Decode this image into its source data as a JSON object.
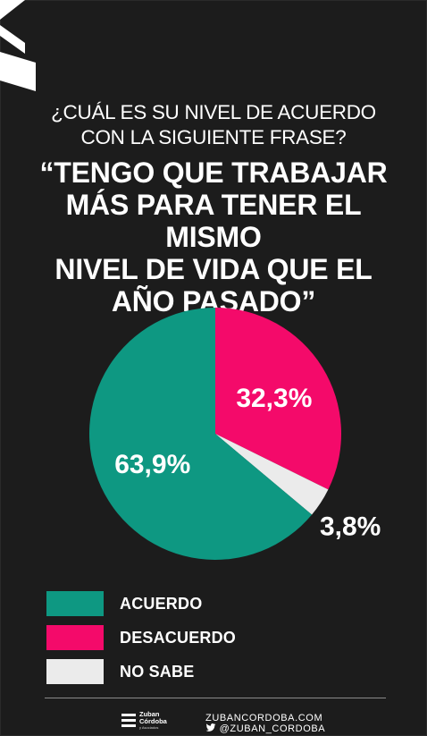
{
  "question": {
    "line1": "¿CUÁL ES SU NIVEL DE ACUERDO",
    "line2": "CON LA SIGUIENTE FRASE?"
  },
  "quote": {
    "line1": "“TENGO QUE TRABAJAR",
    "line2": "MÁS PARA TENER EL MISMO",
    "line3": "NIVEL DE VIDA QUE EL",
    "line4": "AÑO PASADO”"
  },
  "chart_data": {
    "type": "pie",
    "categories": [
      "ACUERDO",
      "DESACUERDO",
      "NO SABE"
    ],
    "values": [
      63.9,
      32.3,
      3.8
    ],
    "labels": [
      "63,9%",
      "32,3%",
      "3,8%"
    ],
    "colors": [
      "#0e9882",
      "#f40a6a",
      "#ebebeb"
    ],
    "legend_placement": "bottom-left"
  },
  "legend": [
    {
      "label": "ACUERDO",
      "color": "#0e9882"
    },
    {
      "label": "DESACUERDO",
      "color": "#f40a6a"
    },
    {
      "label": "NO SABE",
      "color": "#ebebeb"
    }
  ],
  "footer": {
    "logo_line1": "Zuban",
    "logo_line2": "Córdoba",
    "logo_line3": "y Asociados",
    "website": "ZUBANCORDOBA.COM",
    "twitter_icon": "twitter-bird-icon",
    "handle": "@ZUBAN_CORDOBA"
  },
  "colors": {
    "background": "#1c1c1c",
    "accent_acuerdo": "#0e9882",
    "accent_desacuerdo": "#f40a6a",
    "accent_nosabe": "#ebebeb"
  }
}
